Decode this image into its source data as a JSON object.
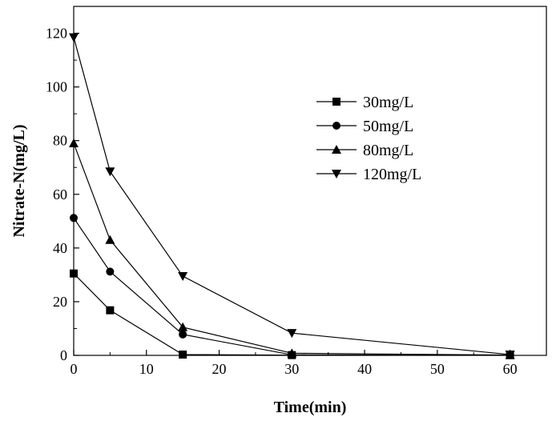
{
  "chart_data": {
    "type": "line",
    "title": "",
    "xlabel": "Time(min)",
    "ylabel": "Nitrate-N(mg/L)",
    "xlim": [
      0,
      65
    ],
    "ylim": [
      0,
      130
    ],
    "xticks": [
      0,
      10,
      20,
      30,
      40,
      50,
      60
    ],
    "yticks": [
      0,
      20,
      40,
      60,
      80,
      100,
      120
    ],
    "grid": false,
    "legend_position": "top-right",
    "series": [
      {
        "name": "30mg/L",
        "marker": "square",
        "x": [
          0,
          5,
          15,
          30,
          60
        ],
        "y": [
          30.5,
          16.8,
          0.3,
          0.1,
          0.1
        ]
      },
      {
        "name": "50mg/L",
        "marker": "circle",
        "x": [
          0,
          5,
          15,
          30,
          60
        ],
        "y": [
          51.2,
          31.2,
          7.8,
          0.2,
          0.1
        ]
      },
      {
        "name": "80mg/L",
        "marker": "triangle-up",
        "x": [
          0,
          5,
          15,
          30,
          60
        ],
        "y": [
          79.0,
          43.0,
          10.5,
          0.8,
          0.1
        ]
      },
      {
        "name": "120mg/L",
        "marker": "triangle-down",
        "x": [
          0,
          5,
          15,
          30,
          60
        ],
        "y": [
          118.5,
          68.5,
          29.5,
          8.3,
          0.3
        ]
      }
    ]
  }
}
